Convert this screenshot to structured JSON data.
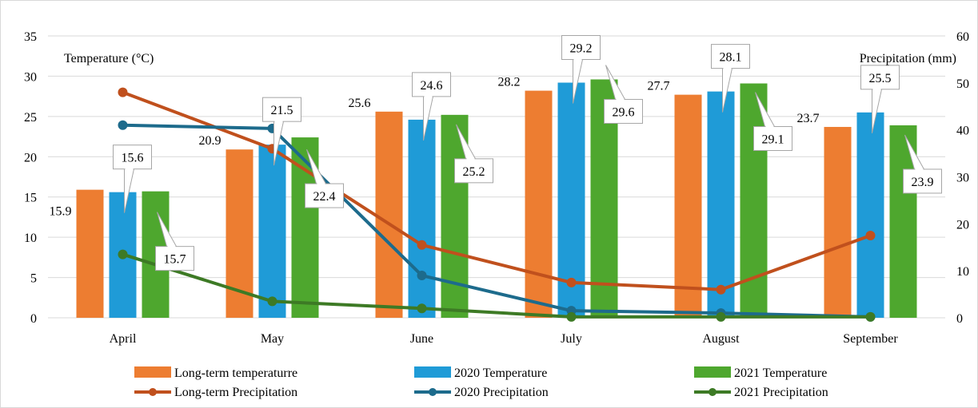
{
  "chart_data": {
    "type": "bar",
    "categories": [
      "April",
      "May",
      "June",
      "July",
      "August",
      "September"
    ],
    "left_axis": {
      "label": "Temperature (°C)",
      "ylim": [
        0,
        35
      ],
      "ticks": [
        "0",
        "5",
        "10",
        "15",
        "20",
        "25",
        "30",
        "35"
      ]
    },
    "right_axis": {
      "label": "Precipitation (mm)",
      "ylim": [
        0,
        60
      ],
      "ticks": [
        "0",
        "10",
        "20",
        "30",
        "40",
        "50",
        "60"
      ]
    },
    "bar_series": [
      {
        "name": "Long-term temperaturre",
        "color": "#ed7d31",
        "values": [
          15.9,
          20.9,
          25.6,
          28.2,
          27.7,
          23.7
        ]
      },
      {
        "name": "2020 Temperature",
        "color": "#1f9bd7",
        "values": [
          15.6,
          21.5,
          24.6,
          29.2,
          28.1,
          25.5
        ]
      },
      {
        "name": "2021 Temperature",
        "color": "#4ea72e",
        "values": [
          15.7,
          22.4,
          25.2,
          29.6,
          29.1,
          23.9
        ]
      }
    ],
    "line_series": [
      {
        "name": "Long-term Precipitation",
        "color": "#c0501d",
        "axis": "right",
        "values": [
          48,
          36,
          15.5,
          7.5,
          6,
          17.5
        ]
      },
      {
        "name": "2020 Precipitation",
        "color": "#1d6b8c",
        "axis": "right",
        "values": [
          41,
          40.3,
          9,
          1.5,
          1,
          0.2
        ]
      },
      {
        "name": "2021 Precipitation",
        "color": "#3d7a25",
        "axis": "right",
        "values": [
          13.5,
          3.5,
          2,
          0.2,
          0.2,
          0.2
        ]
      }
    ],
    "grid": true,
    "legend_position": "bottom"
  }
}
